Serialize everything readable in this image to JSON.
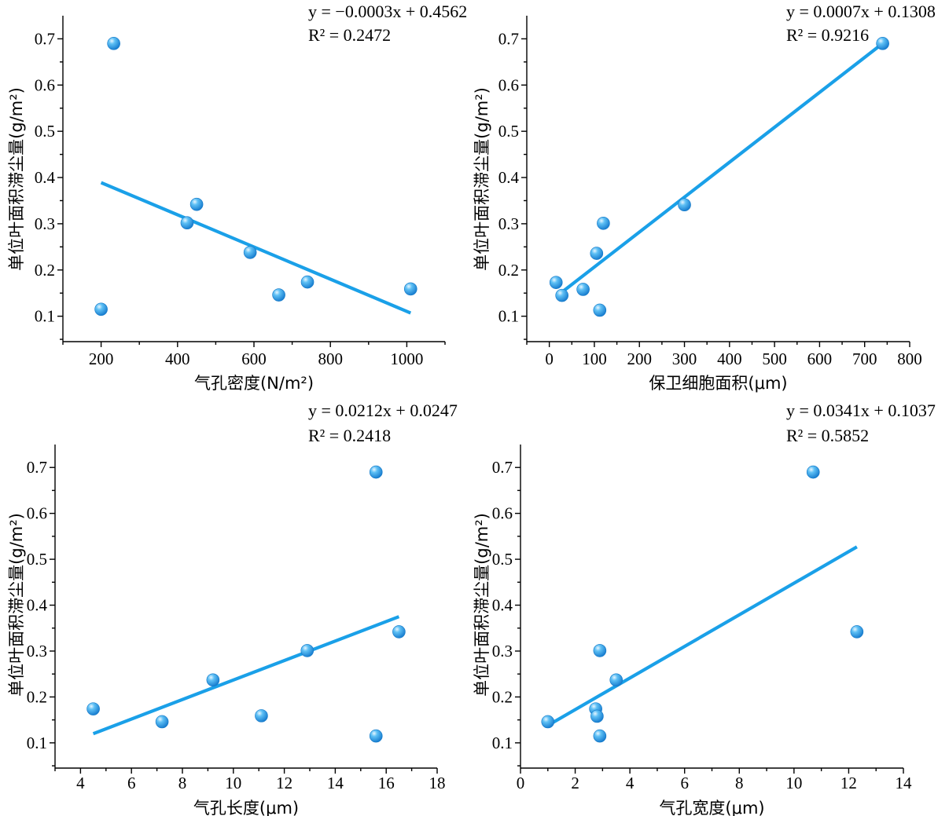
{
  "colors": {
    "fit": "#1aa0e8",
    "marker": "#1a9ae6",
    "marker_highlight": "#e8f6ff"
  },
  "chart_data": [
    {
      "id": "p1",
      "type": "scatter",
      "xlabel": "气孔密度(N/m²)",
      "ylabel": "单位叶面积滞尘量(g/m²)",
      "xlim": [
        100,
        1100
      ],
      "ylim": [
        0.045,
        0.75
      ],
      "xticks": [
        200,
        400,
        600,
        800,
        1000
      ],
      "yticks": [
        0.1,
        0.2,
        0.3,
        0.4,
        0.5,
        0.6,
        0.7
      ],
      "points": [
        [
          200,
          0.115
        ],
        [
          233,
          0.69
        ],
        [
          425,
          0.302
        ],
        [
          450,
          0.342
        ],
        [
          590,
          0.238
        ],
        [
          665,
          0.146
        ],
        [
          740,
          0.174
        ],
        [
          1010,
          0.159
        ]
      ],
      "fit": {
        "x1": 200,
        "y1": 0.389,
        "x2": 1010,
        "y2": 0.107
      },
      "equation": "y = −0.0003x + 0.4562",
      "r2": "R² = 0.2472"
    },
    {
      "id": "p2",
      "type": "scatter",
      "xlabel": "保卫细胞面积(μm)",
      "ylabel": "单位叶面积滞尘量(g/m²)",
      "xlim": [
        -50,
        800
      ],
      "ylim": [
        0.045,
        0.75
      ],
      "xticks": [
        0,
        100,
        200,
        300,
        400,
        500,
        600,
        700,
        800
      ],
      "yticks": [
        0.1,
        0.2,
        0.3,
        0.4,
        0.5,
        0.6,
        0.7
      ],
      "points": [
        [
          15,
          0.173
        ],
        [
          28,
          0.145
        ],
        [
          75,
          0.158
        ],
        [
          105,
          0.236
        ],
        [
          112,
          0.113
        ],
        [
          120,
          0.301
        ],
        [
          300,
          0.341
        ],
        [
          740,
          0.69
        ]
      ],
      "fit": {
        "x1": 20,
        "y1": 0.146,
        "x2": 740,
        "y2": 0.69
      },
      "equation": "y = 0.0007x + 0.1308",
      "r2": "R² = 0.9216"
    },
    {
      "id": "p3",
      "type": "scatter",
      "xlabel": "气孔长度(μm)",
      "ylabel": "单位叶面积滞尘量(g/m²)",
      "xlim": [
        3,
        18
      ],
      "ylim": [
        0.045,
        0.75
      ],
      "xticks": [
        4,
        6,
        8,
        10,
        12,
        14,
        16,
        18
      ],
      "yticks": [
        0.1,
        0.2,
        0.3,
        0.4,
        0.5,
        0.6,
        0.7
      ],
      "points": [
        [
          4.5,
          0.174
        ],
        [
          7.2,
          0.146
        ],
        [
          9.2,
          0.237
        ],
        [
          11.1,
          0.159
        ],
        [
          12.9,
          0.301
        ],
        [
          15.6,
          0.69
        ],
        [
          15.6,
          0.115
        ],
        [
          16.5,
          0.342
        ]
      ],
      "fit": {
        "x1": 4.5,
        "y1": 0.12,
        "x2": 16.5,
        "y2": 0.375
      },
      "equation": "y = 0.0212x + 0.0247",
      "r2": "R² = 0.2418"
    },
    {
      "id": "p4",
      "type": "scatter",
      "xlabel": "气孔宽度(μm)",
      "ylabel": "单位叶面积滞尘量(g/m²)",
      "xlim": [
        0,
        14
      ],
      "ylim": [
        0.045,
        0.75
      ],
      "xticks": [
        0,
        2,
        4,
        6,
        8,
        10,
        12,
        14
      ],
      "yticks": [
        0.1,
        0.2,
        0.3,
        0.4,
        0.5,
        0.6,
        0.7
      ],
      "points": [
        [
          1.0,
          0.146
        ],
        [
          2.75,
          0.174
        ],
        [
          2.8,
          0.158
        ],
        [
          2.9,
          0.301
        ],
        [
          2.9,
          0.115
        ],
        [
          3.5,
          0.237
        ],
        [
          10.7,
          0.69
        ],
        [
          12.3,
          0.342
        ]
      ],
      "fit": {
        "x1": 1.0,
        "y1": 0.138,
        "x2": 12.3,
        "y2": 0.527
      },
      "equation": "y = 0.0341x + 0.1037",
      "r2": "R² = 0.5852"
    }
  ]
}
